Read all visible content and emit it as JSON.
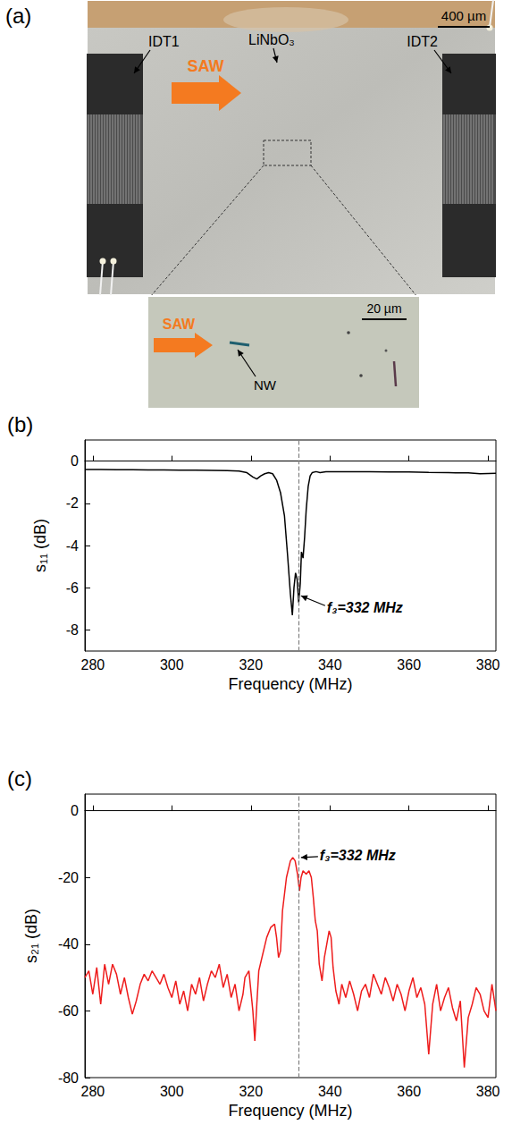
{
  "panel_a": {
    "label": "(a)",
    "substrate": "LiNbO₃",
    "scale_bar": "400 µm",
    "left_transducer": "IDT1",
    "right_transducer": "IDT2",
    "wave": "SAW",
    "inset": {
      "scale_bar": "20 µm",
      "wave": "SAW",
      "nanowire": "NW"
    }
  },
  "chart_data": [
    {
      "type": "line",
      "label": "(b)",
      "x_label": "Frequency (MHz)",
      "y_label": "s₁₁ (dB)",
      "color": "#000000",
      "grid": false,
      "x": [
        278,
        282,
        286,
        290,
        294,
        298,
        302,
        306,
        310,
        314,
        317,
        319,
        320.5,
        321.5,
        322.5,
        323.5,
        324.5,
        325.5,
        326.5,
        327.5,
        328.5,
        329.3,
        330,
        330.5,
        330.9,
        331.3,
        331.7,
        332.1,
        332.5,
        332.8,
        333.2,
        333.6,
        334,
        334.5,
        335,
        335.5,
        336.5,
        337.5,
        339,
        342,
        346,
        350,
        355,
        360,
        365,
        370,
        375,
        378,
        382
      ],
      "values": [
        -0.4,
        -0.4,
        -0.41,
        -0.41,
        -0.42,
        -0.42,
        -0.43,
        -0.43,
        -0.44,
        -0.45,
        -0.47,
        -0.55,
        -0.75,
        -0.85,
        -0.7,
        -0.6,
        -0.55,
        -0.6,
        -0.9,
        -1.5,
        -2.6,
        -4.5,
        -6.3,
        -7.3,
        -6.0,
        -5.3,
        -5.6,
        -6.7,
        -5.8,
        -4.3,
        -4.6,
        -3.6,
        -2.3,
        -1.2,
        -0.7,
        -0.55,
        -0.5,
        -0.55,
        -0.5,
        -0.5,
        -0.5,
        -0.5,
        -0.52,
        -0.52,
        -0.54,
        -0.55,
        -0.56,
        -0.6,
        -0.58
      ],
      "xlim": [
        278,
        382
      ],
      "xticks": [
        280,
        300,
        320,
        340,
        360,
        380
      ],
      "ylim": [
        -9,
        1
      ],
      "yticks": [
        -8,
        -6,
        -4,
        -2,
        0
      ],
      "reference_line": {
        "x": 332,
        "line_style": "dashed"
      },
      "annotations": [
        {
          "text": "f₃=332 MHz",
          "x": 332,
          "y": -6.3
        }
      ]
    },
    {
      "type": "line",
      "label": "(c)",
      "x_label": "Frequency (MHz)",
      "y_label": "s₂₁ (dB)",
      "color": "#ee1c1c",
      "grid": false,
      "x": [
        278,
        279,
        280,
        281,
        282,
        283,
        284,
        285,
        286,
        287,
        288,
        289,
        290,
        291,
        292,
        293,
        294,
        295,
        296,
        297,
        298,
        299,
        300,
        301,
        302,
        303,
        304,
        305,
        306,
        307,
        308,
        309,
        310,
        311,
        312,
        313,
        314,
        315,
        316,
        317,
        318,
        318.5,
        319.5,
        320.5,
        321,
        321.5,
        322,
        323,
        324,
        325,
        326,
        326.5,
        327,
        327.5,
        328,
        329,
        330,
        330.6,
        331.2,
        331.8,
        332.3,
        332.7,
        333.2,
        334,
        334.7,
        335.3,
        335.8,
        336.3,
        336.8,
        337.3,
        338,
        338.6,
        339.2,
        339.8,
        340.3,
        340.8,
        341.5,
        342.3,
        343,
        344,
        345,
        346,
        347,
        348,
        349,
        350,
        351,
        352,
        353,
        354,
        355,
        356,
        357,
        358,
        359,
        360,
        361,
        362,
        363,
        364,
        365,
        366,
        367,
        368,
        369,
        370,
        371,
        372,
        373,
        374,
        375,
        376,
        377,
        378,
        379,
        380,
        381,
        382
      ],
      "values": [
        -50,
        -48,
        -55,
        -47,
        -58,
        -46,
        -52,
        -46,
        -49,
        -55,
        -50,
        -56,
        -61,
        -57,
        -52,
        -49,
        -51,
        -48,
        -50,
        -52,
        -49,
        -53,
        -56,
        -51,
        -58,
        -54,
        -60,
        -52,
        -55,
        -50,
        -57,
        -52,
        -48,
        -50,
        -46,
        -53,
        -49,
        -56,
        -52,
        -60,
        -55,
        -50,
        -48,
        -60,
        -69,
        -58,
        -48,
        -43,
        -38,
        -35,
        -34,
        -38,
        -44,
        -42,
        -30,
        -20,
        -15,
        -14,
        -15,
        -19,
        -24,
        -20,
        -18,
        -19,
        -18,
        -20,
        -26,
        -33,
        -36,
        -46,
        -51,
        -44,
        -40,
        -36,
        -38,
        -47,
        -54,
        -58,
        -52,
        -56,
        -51,
        -55,
        -60,
        -54,
        -52,
        -56,
        -49,
        -52,
        -55,
        -50,
        -53,
        -57,
        -52,
        -55,
        -60,
        -54,
        -50,
        -56,
        -53,
        -58,
        -73,
        -58,
        -52,
        -60,
        -56,
        -53,
        -59,
        -63,
        -57,
        -77,
        -62,
        -58,
        -53,
        -55,
        -60,
        -62,
        -52,
        -60
      ],
      "xlim": [
        278,
        382
      ],
      "xticks": [
        280,
        300,
        320,
        340,
        360,
        380
      ],
      "ylim": [
        -80,
        5
      ],
      "yticks": [
        -80,
        -60,
        -40,
        -20,
        0
      ],
      "reference_line": {
        "x": 332,
        "line_style": "dashed"
      },
      "annotations": [
        {
          "text": "f₃=332 MHz",
          "x": 332,
          "y": -14
        }
      ]
    }
  ]
}
